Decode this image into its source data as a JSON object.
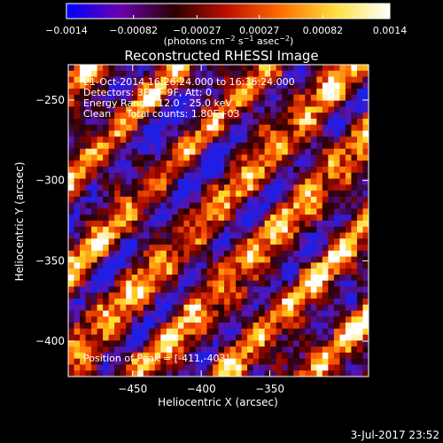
{
  "chart_data": {
    "type": "heatmap",
    "title": "Reconstructed RHESSI Image",
    "xlabel": "Heliocentric X (arcsec)",
    "ylabel": "Heliocentric Y (arcsec)",
    "xlim": [
      -497,
      -278
    ],
    "ylim": [
      -422,
      -228
    ],
    "x_ticks": [
      {
        "value": -450,
        "label": "−450"
      },
      {
        "value": -400,
        "label": "−400"
      },
      {
        "value": -350,
        "label": "−350"
      }
    ],
    "y_ticks": [
      {
        "value": -250,
        "label": "−250"
      },
      {
        "value": -300,
        "label": "−300"
      },
      {
        "value": -350,
        "label": "−350"
      },
      {
        "value": -400,
        "label": "−400"
      }
    ],
    "colorbar": {
      "range": [
        -0.0014,
        0.0014
      ],
      "ticks": [
        {
          "value": -0.0014,
          "label": "−0.0014"
        },
        {
          "value": -0.00082,
          "label": "−0.00082"
        },
        {
          "value": -0.00027,
          "label": "−0.00027"
        },
        {
          "value": 0.00027,
          "label": "0.00027"
        },
        {
          "value": 0.00082,
          "label": "0.00082"
        },
        {
          "value": 0.0014,
          "label": "0.0014"
        }
      ],
      "unit_parts": [
        "(photons cm",
        "−2",
        " s",
        "−1",
        " asec",
        "−2",
        ")"
      ],
      "colors": [
        "#0000ff",
        "#6a00b0",
        "#2a0000",
        "#c01000",
        "#ff7000",
        "#ffe040",
        "#ffffff"
      ]
    },
    "annotations": [
      "21-Oct-2014 16:26:24.000 to 16:36:24.000",
      "Detectors: 3F 6F 9F, Att: 0",
      "Energy Range: 12.0 - 25.0 keV",
      "Clean     Total counts: 1.80E+03"
    ],
    "peak_label": "Position of Peak = [-411,-403]",
    "pattern_note": "diagonal fringe pattern (RHESSI modulation) spanning the full field of view"
  },
  "footer": {
    "timestamp": "3-Jul-2017 23:52"
  }
}
